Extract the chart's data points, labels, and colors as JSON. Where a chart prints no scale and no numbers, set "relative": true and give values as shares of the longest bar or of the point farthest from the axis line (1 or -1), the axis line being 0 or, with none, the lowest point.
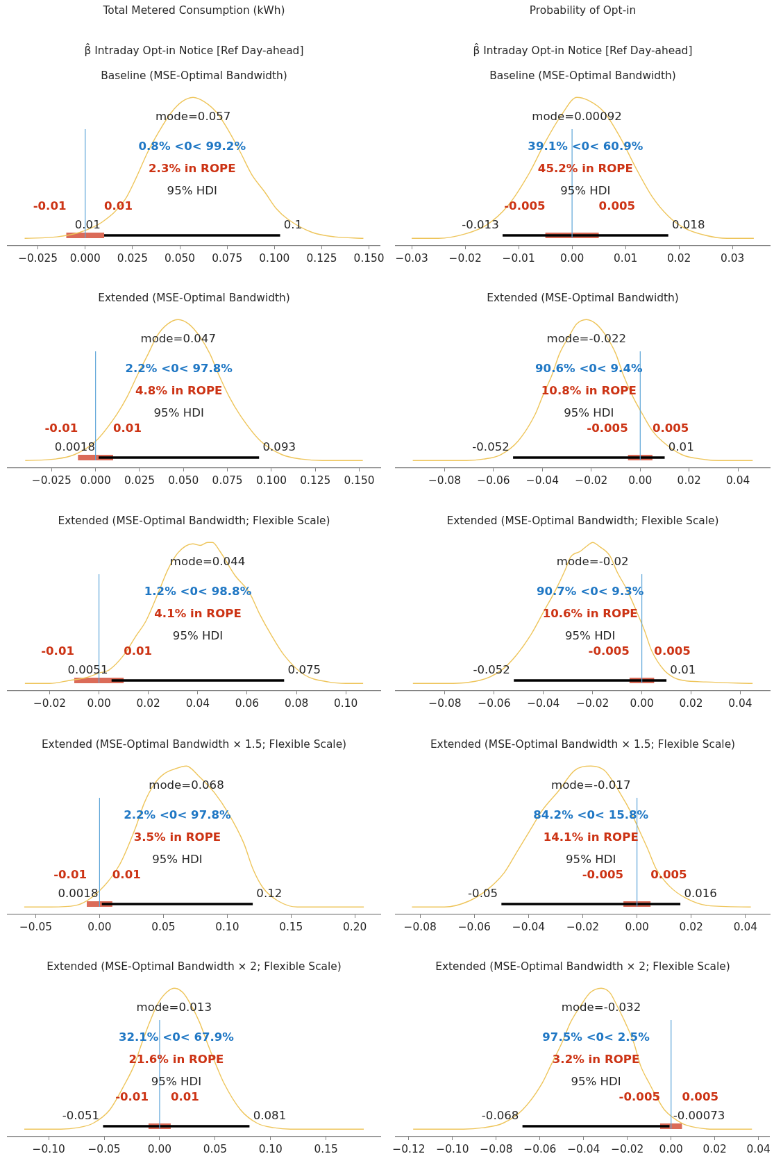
{
  "chart_data": [
    {
      "type": "line",
      "title": "Total Metered Consumption (kWh)",
      "subtitle": "β̂ Intraday Opt-in Notice [Ref Day-ahead]\nBaseline (MSE-Optimal Bandwidth)",
      "relative": true,
      "xlim": [
        -0.041,
        0.156
      ],
      "xticks": [
        {
          "value": -0.025,
          "label": "−0.025"
        },
        {
          "value": 0,
          "label": "0.000"
        },
        0.025,
        {
          "value": 0.05,
          "label": "0.050"
        },
        0.075,
        {
          "value": 0.1,
          "label": "0.100"
        },
        0.125,
        {
          "value": 0.15,
          "label": "0.150"
        }
      ],
      "series": [
        {
          "color": "#eec55b",
          "x": [
            -0.032,
            -0.015,
            -0.003,
            0.009,
            0.021,
            0.027,
            0.033,
            0.039,
            0.045,
            0.051,
            0.057,
            0.063,
            0.07,
            0.076,
            0.082,
            0.088,
            0.095,
            0.101,
            0.107,
            0.12,
            0.132,
            0.147
          ],
          "values": [
            0.05,
            0.06,
            0.09,
            0.16,
            0.31,
            0.46,
            0.63,
            0.77,
            0.89,
            0.97,
            1,
            0.97,
            0.89,
            0.77,
            0.63,
            0.48,
            0.36,
            0.25,
            0.18,
            0.09,
            0.06,
            0.05
          ]
        },
        {
          "color": "#000000",
          "x": [
            0.01,
            0.103
          ],
          "values": [
            0.07,
            0.07
          ]
        },
        {
          "color": "#db6b58",
          "x": [
            -0.01,
            0.01
          ],
          "values": [
            0.07,
            0.07
          ]
        }
      ],
      "ref_lines": [
        {
          "axis": "x",
          "value": 0,
          "color": "#5ea5d8"
        }
      ],
      "annotations": [
        "mode=0.057",
        "0.8% <0< 99.2%",
        "2.3% in ROPE",
        "95% HDI",
        "-0.01",
        "0.01",
        "0.01",
        "0.1"
      ]
    },
    {
      "type": "line",
      "title": "Probability of Opt-in",
      "subtitle": "β̂ Intraday Opt-in Notice [Ref Day-ahead]\nBaseline (MSE-Optimal Bandwidth)",
      "relative": true,
      "xlim": [
        -0.033,
        0.037
      ],
      "xticks": [
        {
          "value": -0.03,
          "label": "−0.03"
        },
        {
          "value": -0.02,
          "label": "−0.02"
        },
        {
          "value": -0.01,
          "label": "−0.01"
        },
        {
          "value": 0,
          "label": "0.00"
        },
        0.01,
        0.02,
        0.03
      ],
      "series": [
        {
          "color": "#eec55b",
          "x": [
            -0.03,
            -0.025,
            -0.02,
            -0.016,
            -0.012,
            -0.008,
            -0.005,
            -0.002,
            0.0009,
            0.003,
            0.006,
            0.009,
            0.012,
            0.015,
            0.018,
            0.021,
            0.025,
            0.029,
            0.034
          ],
          "values": [
            0.05,
            0.05,
            0.08,
            0.14,
            0.27,
            0.49,
            0.7,
            0.88,
            1,
            0.98,
            0.9,
            0.73,
            0.52,
            0.33,
            0.2,
            0.12,
            0.07,
            0.05,
            0.05
          ]
        },
        {
          "color": "#000000",
          "x": [
            -0.013,
            0.018
          ],
          "values": [
            0.07,
            0.07
          ]
        },
        {
          "color": "#db6b58",
          "x": [
            -0.005,
            0.005
          ],
          "values": [
            0.07,
            0.07
          ]
        }
      ],
      "ref_lines": [
        {
          "axis": "x",
          "value": 0,
          "color": "#5ea5d8"
        }
      ],
      "annotations": [
        "mode=0.00092",
        "39.1% <0< 60.9%",
        "45.2% in ROPE",
        "95% HDI",
        "-0.005",
        "0.005",
        "-0.013",
        "0.018"
      ]
    },
    {
      "type": "line",
      "title": "Extended (MSE-Optimal Bandwidth)",
      "relative": true,
      "xlim": [
        -0.05,
        0.162
      ],
      "xticks": [
        {
          "value": -0.025,
          "label": "−0.025"
        },
        {
          "value": 0,
          "label": "0.000"
        },
        0.025,
        {
          "value": 0.05,
          "label": "0.050"
        },
        0.075,
        {
          "value": 0.1,
          "label": "0.100"
        },
        0.125,
        {
          "value": 0.15,
          "label": "0.150"
        }
      ],
      "series": [
        {
          "color": "#eec55b",
          "x": [
            -0.04,
            -0.023,
            -0.012,
            0,
            0.012,
            0.018,
            0.024,
            0.03,
            0.035,
            0.041,
            0.047,
            0.053,
            0.059,
            0.065,
            0.07,
            0.076,
            0.082,
            0.094,
            0.106,
            0.117,
            0.129,
            0.152
          ],
          "values": [
            0.05,
            0.06,
            0.09,
            0.18,
            0.36,
            0.48,
            0.63,
            0.77,
            0.89,
            0.97,
            1,
            0.97,
            0.89,
            0.77,
            0.63,
            0.48,
            0.36,
            0.18,
            0.09,
            0.06,
            0.05,
            0.05
          ]
        },
        {
          "color": "#000000",
          "x": [
            0.0018,
            0.093
          ],
          "values": [
            0.07,
            0.07
          ]
        },
        {
          "color": "#db6b58",
          "x": [
            -0.01,
            0.01
          ],
          "values": [
            0.07,
            0.07
          ]
        }
      ],
      "ref_lines": [
        {
          "axis": "x",
          "value": 0,
          "color": "#5ea5d8"
        }
      ],
      "annotations": [
        "mode=0.047",
        "2.2% <0< 97.8%",
        "4.8% in ROPE",
        "95% HDI",
        "-0.01",
        "0.01",
        "0.0018",
        "0.093"
      ]
    },
    {
      "type": "line",
      "title": "Extended (MSE-Optimal Bandwidth)",
      "relative": true,
      "xlim": [
        -0.1,
        0.053
      ],
      "xticks": [
        {
          "value": -0.08,
          "label": "−0.08"
        },
        {
          "value": -0.06,
          "label": "−0.06"
        },
        {
          "value": -0.04,
          "label": "−0.04"
        },
        {
          "value": -0.02,
          "label": "−0.02"
        },
        {
          "value": 0,
          "label": "0.00"
        },
        0.02,
        0.04
      ],
      "series": [
        {
          "color": "#eec55b",
          "x": [
            -0.093,
            -0.071,
            -0.064,
            -0.057,
            -0.05,
            -0.043,
            -0.04,
            -0.036,
            -0.033,
            -0.029,
            -0.026,
            -0.022,
            -0.018,
            -0.014,
            -0.01,
            -0.007,
            -0.003,
            0.001,
            0.005,
            0.009,
            0.017,
            0.025,
            0.032,
            0.046
          ],
          "values": [
            0.05,
            0.05,
            0.06,
            0.09,
            0.18,
            0.36,
            0.48,
            0.63,
            0.77,
            0.89,
            0.97,
            1,
            0.97,
            0.89,
            0.77,
            0.63,
            0.48,
            0.36,
            0.25,
            0.18,
            0.09,
            0.06,
            0.05,
            0.05
          ]
        },
        {
          "color": "#000000",
          "x": [
            -0.052,
            0.01
          ],
          "values": [
            0.07,
            0.07
          ]
        },
        {
          "color": "#db6b58",
          "x": [
            -0.005,
            0.005
          ],
          "values": [
            0.07,
            0.07
          ]
        }
      ],
      "ref_lines": [
        {
          "axis": "x",
          "value": 0,
          "color": "#5ea5d8"
        }
      ],
      "annotations": [
        "mode=-0.022",
        "90.6% <0< 9.4%",
        "10.8% in ROPE",
        "95% HDI",
        "-0.005",
        "0.005",
        "-0.052",
        "0.01"
      ]
    },
    {
      "type": "line",
      "title": "Extended (MSE-Optimal Bandwidth; Flexible Scale)",
      "relative": true,
      "xlim": [
        -0.037,
        0.114
      ],
      "xticks": [
        {
          "value": -0.02,
          "label": "−0.02"
        },
        {
          "value": 0,
          "label": "0.00"
        },
        0.02,
        0.04,
        0.06,
        0.08,
        {
          "value": 0.1,
          "label": "0.10"
        }
      ],
      "series": [
        {
          "color": "#eec55b",
          "x": [
            -0.03,
            -0.02,
            -0.012,
            -0.005,
            0,
            0.004,
            0.01,
            0.015,
            0.019,
            0.024,
            0.028,
            0.032,
            0.038,
            0.041,
            0.044,
            0.046,
            0.049,
            0.055,
            0.061,
            0.065,
            0.07,
            0.075,
            0.083,
            0.093,
            0.1,
            0.107
          ],
          "values": [
            0.05,
            0.05,
            0.07,
            0.09,
            0.12,
            0.14,
            0.24,
            0.37,
            0.47,
            0.66,
            0.82,
            0.93,
            0.99,
            0.98,
            1,
            1,
            0.94,
            0.78,
            0.66,
            0.52,
            0.37,
            0.24,
            0.11,
            0.06,
            0.05,
            0.05
          ]
        },
        {
          "color": "#000000",
          "x": [
            0.0051,
            0.075
          ],
          "values": [
            0.07,
            0.07
          ]
        },
        {
          "color": "#db6b58",
          "x": [
            -0.01,
            0.01
          ],
          "values": [
            0.07,
            0.07
          ]
        }
      ],
      "ref_lines": [
        {
          "axis": "x",
          "value": 0,
          "color": "#5ea5d8"
        }
      ],
      "annotations": [
        "mode=0.044",
        "1.2% <0< 98.8%",
        "4.1% in ROPE",
        "95% HDI",
        "-0.01",
        "0.01",
        "0.0051",
        "0.075"
      ]
    },
    {
      "type": "line",
      "title": "Extended (MSE-Optimal Bandwidth; Flexible Scale)",
      "relative": true,
      "xlim": [
        -0.1,
        0.052
      ],
      "xticks": [
        {
          "value": -0.08,
          "label": "−0.08"
        },
        {
          "value": -0.06,
          "label": "−0.06"
        },
        {
          "value": -0.04,
          "label": "−0.04"
        },
        {
          "value": -0.02,
          "label": "−0.02"
        },
        {
          "value": 0,
          "label": "0.00"
        },
        0.02,
        0.04
      ],
      "series": [
        {
          "color": "#eec55b",
          "x": [
            -0.093,
            -0.081,
            -0.066,
            -0.057,
            -0.051,
            -0.045,
            -0.04,
            -0.035,
            -0.031,
            -0.029,
            -0.025,
            -0.022,
            -0.02,
            -0.017,
            -0.013,
            -0.01,
            -0.006,
            -0.002,
            0.001,
            0.004,
            0.009,
            0.013,
            0.017,
            0.026,
            0.045
          ],
          "values": [
            0.05,
            0.05,
            0.07,
            0.14,
            0.24,
            0.38,
            0.53,
            0.68,
            0.82,
            0.9,
            0.94,
            0.98,
            1,
            0.97,
            0.91,
            0.8,
            0.68,
            0.53,
            0.41,
            0.27,
            0.14,
            0.09,
            0.07,
            0.06,
            0.05
          ]
        },
        {
          "color": "#000000",
          "x": [
            -0.052,
            0.01
          ],
          "values": [
            0.07,
            0.07
          ]
        },
        {
          "color": "#db6b58",
          "x": [
            -0.005,
            0.005
          ],
          "values": [
            0.07,
            0.07
          ]
        }
      ],
      "ref_lines": [
        {
          "axis": "x",
          "value": 0,
          "color": "#5ea5d8"
        }
      ],
      "annotations": [
        "mode=-0.02",
        "90.7% <0< 9.3%",
        "10.6% in ROPE",
        "95% HDI",
        "-0.005",
        "0.005",
        "-0.052",
        "0.01"
      ]
    },
    {
      "type": "line",
      "title": "Extended (MSE-Optimal Bandwidth × 1.5; Flexible Scale)",
      "relative": true,
      "xlim": [
        -0.072,
        0.22
      ],
      "xticks": [
        {
          "value": -0.05,
          "label": "−0.05"
        },
        {
          "value": 0,
          "label": "0.00"
        },
        0.05,
        {
          "value": 0.1,
          "label": "0.10"
        },
        0.15,
        {
          "value": 0.2,
          "label": "0.20"
        }
      ],
      "series": [
        {
          "color": "#eec55b",
          "x": [
            -0.059,
            -0.038,
            -0.019,
            0,
            0.016,
            0.028,
            0.035,
            0.043,
            0.051,
            0.059,
            0.068,
            0.078,
            0.09,
            0.101,
            0.113,
            0.12,
            0.128,
            0.14,
            0.155,
            0.175,
            0.207
          ],
          "values": [
            0.05,
            0.05,
            0.06,
            0.16,
            0.34,
            0.58,
            0.75,
            0.88,
            0.95,
            0.98,
            1,
            0.93,
            0.82,
            0.68,
            0.48,
            0.31,
            0.18,
            0.09,
            0.05,
            0.05,
            0.05
          ]
        },
        {
          "color": "#000000",
          "x": [
            0.0018,
            0.12
          ],
          "values": [
            0.07,
            0.07
          ]
        },
        {
          "color": "#db6b58",
          "x": [
            -0.01,
            0.01
          ],
          "values": [
            0.07,
            0.07
          ]
        }
      ],
      "ref_lines": [
        {
          "axis": "x",
          "value": 0,
          "color": "#5ea5d8"
        }
      ],
      "annotations": [
        "mode=0.068",
        "2.2% <0< 97.8%",
        "3.5% in ROPE",
        "95% HDI",
        "-0.01",
        "0.01",
        "0.0018",
        "0.12"
      ]
    },
    {
      "type": "line",
      "title": "Extended (MSE-Optimal Bandwidth × 1.5; Flexible Scale)",
      "relative": true,
      "xlim": [
        -0.089,
        0.049
      ],
      "xticks": [
        {
          "value": -0.08,
          "label": "−0.08"
        },
        {
          "value": -0.06,
          "label": "−0.06"
        },
        {
          "value": -0.04,
          "label": "−0.04"
        },
        {
          "value": -0.02,
          "label": "−0.02"
        },
        {
          "value": 0,
          "label": "0.00"
        },
        0.02,
        0.04
      ],
      "series": [
        {
          "color": "#eec55b",
          "x": [
            -0.083,
            -0.071,
            -0.062,
            -0.055,
            -0.049,
            -0.044,
            -0.039,
            -0.035,
            -0.029,
            -0.023,
            -0.017,
            -0.012,
            -0.006,
            -0.002,
            0.001,
            0.004,
            0.007,
            0.012,
            0.018,
            0.026,
            0.042
          ],
          "values": [
            0.05,
            0.05,
            0.09,
            0.17,
            0.28,
            0.43,
            0.58,
            0.7,
            0.83,
            0.97,
            1,
            0.97,
            0.81,
            0.68,
            0.56,
            0.44,
            0.31,
            0.19,
            0.11,
            0.06,
            0.05
          ]
        },
        {
          "color": "#000000",
          "x": [
            -0.05,
            0.016
          ],
          "values": [
            0.07,
            0.07
          ]
        },
        {
          "color": "#db6b58",
          "x": [
            -0.005,
            0.005
          ],
          "values": [
            0.07,
            0.07
          ]
        }
      ],
      "ref_lines": [
        {
          "axis": "x",
          "value": 0,
          "color": "#5ea5d8"
        }
      ],
      "annotations": [
        "mode=-0.017",
        "84.2% <0< 15.8%",
        "14.1% in ROPE",
        "95% HDI",
        "-0.005",
        "0.005",
        "-0.05",
        "0.016"
      ]
    },
    {
      "type": "line",
      "title": "Extended (MSE-Optimal Bandwidth × 2; Flexible Scale)",
      "relative": true,
      "xlim": [
        -0.137,
        0.199
      ],
      "xticks": [
        {
          "value": -0.1,
          "label": "−0.10"
        },
        {
          "value": -0.05,
          "label": "−0.05"
        },
        {
          "value": 0,
          "label": "0.00"
        },
        0.05,
        {
          "value": 0.1,
          "label": "0.10"
        },
        0.15
      ],
      "series": [
        {
          "color": "#eec55b",
          "x": [
            -0.122,
            -0.089,
            -0.074,
            -0.06,
            -0.045,
            -0.031,
            -0.023,
            -0.016,
            -0.009,
            -0.002,
            0.006,
            0.013,
            0.021,
            0.028,
            0.036,
            0.043,
            0.051,
            0.058,
            0.073,
            0.088,
            0.103,
            0.118,
            0.184
          ],
          "values": [
            0.05,
            0.05,
            0.06,
            0.09,
            0.18,
            0.36,
            0.48,
            0.63,
            0.77,
            0.89,
            0.97,
            1,
            0.97,
            0.89,
            0.77,
            0.63,
            0.48,
            0.36,
            0.18,
            0.09,
            0.06,
            0.05,
            0.05
          ]
        },
        {
          "color": "#000000",
          "x": [
            -0.051,
            0.081
          ],
          "values": [
            0.07,
            0.07
          ]
        },
        {
          "color": "#db6b58",
          "x": [
            -0.01,
            0.01
          ],
          "values": [
            0.07,
            0.07
          ]
        }
      ],
      "ref_lines": [
        {
          "axis": "x",
          "value": 0,
          "color": "#5ea5d8"
        }
      ],
      "annotations": [
        "mode=0.013",
        "32.1% <0< 67.9%",
        "21.6% in ROPE",
        "95% HDI",
        "-0.01",
        "0.01",
        "-0.051",
        "0.081"
      ]
    },
    {
      "type": "line",
      "title": "Extended (MSE-Optimal Bandwidth × 2; Flexible Scale)",
      "relative": true,
      "xlim": [
        -0.126,
        0.045
      ],
      "xticks": [
        {
          "value": -0.12,
          "label": "−0.12"
        },
        {
          "value": -0.1,
          "label": "−0.10"
        },
        {
          "value": -0.08,
          "label": "−0.08"
        },
        {
          "value": -0.06,
          "label": "−0.06"
        },
        {
          "value": -0.04,
          "label": "−0.04"
        },
        {
          "value": -0.02,
          "label": "−0.02"
        },
        {
          "value": 0,
          "label": "0.00"
        },
        0.02,
        0.04
      ],
      "series": [
        {
          "color": "#eec55b",
          "x": [
            -0.118,
            -0.095,
            -0.086,
            -0.077,
            -0.068,
            -0.059,
            -0.055,
            -0.05,
            -0.046,
            -0.041,
            -0.037,
            -0.032,
            -0.028,
            -0.025,
            -0.021,
            -0.017,
            -0.014,
            -0.01,
            -0.006,
            -0.003,
            0.005,
            0.012,
            0.02,
            0.037
          ],
          "values": [
            0.05,
            0.05,
            0.06,
            0.09,
            0.18,
            0.36,
            0.48,
            0.63,
            0.77,
            0.89,
            0.97,
            1,
            0.97,
            0.89,
            0.77,
            0.63,
            0.48,
            0.36,
            0.25,
            0.18,
            0.09,
            0.06,
            0.05,
            0.05
          ]
        },
        {
          "color": "#000000",
          "x": [
            -0.068,
            -0.00073
          ],
          "values": [
            0.07,
            0.07
          ]
        },
        {
          "color": "#db6b58",
          "x": [
            -0.005,
            0.005
          ],
          "values": [
            0.07,
            0.07
          ]
        }
      ],
      "ref_lines": [
        {
          "axis": "x",
          "value": 0,
          "color": "#5ea5d8"
        }
      ],
      "annotations": [
        "mode=-0.032",
        "97.5% <0< 2.5%",
        "3.2% in ROPE",
        "95% HDI",
        "-0.005",
        "0.005",
        "-0.068",
        "-0.00073"
      ]
    }
  ]
}
